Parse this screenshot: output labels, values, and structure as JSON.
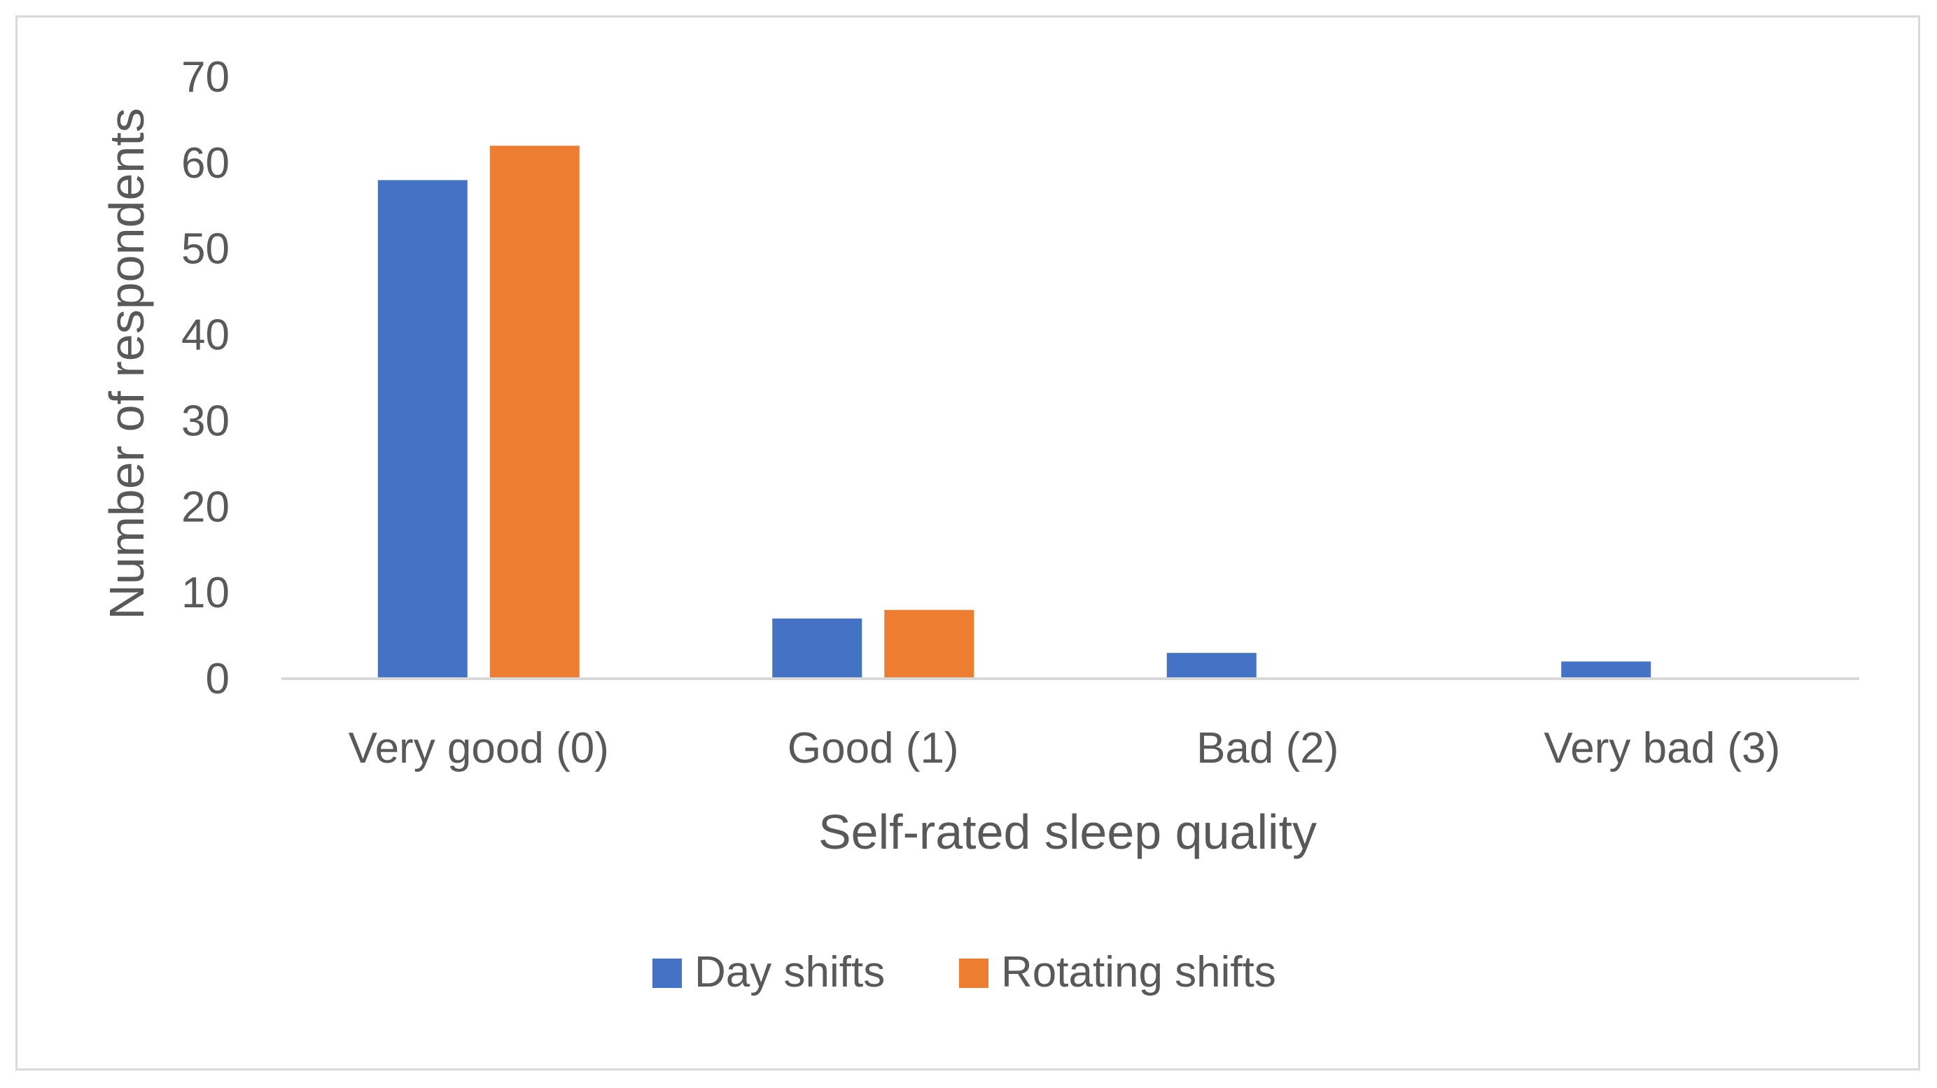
{
  "chart_data": {
    "type": "bar",
    "title": "",
    "xlabel": "Self-rated sleep quality",
    "ylabel": "Number of respondents",
    "categories": [
      "Very good (0)",
      "Good (1)",
      "Bad (2)",
      "Very bad (3)"
    ],
    "series": [
      {
        "name": "Day shifts",
        "color": "#4472c4",
        "values": [
          58,
          7,
          3,
          2
        ]
      },
      {
        "name": "Rotating shifts",
        "color": "#ed7d31",
        "values": [
          62,
          8,
          0,
          0
        ]
      }
    ],
    "ylim": [
      0,
      70
    ],
    "yticks": [
      0,
      10,
      20,
      30,
      40,
      50,
      60,
      70
    ],
    "grid": false,
    "legend": "bottom",
    "axis_line_color": "#d9d9d9",
    "text_color": "#595959"
  }
}
